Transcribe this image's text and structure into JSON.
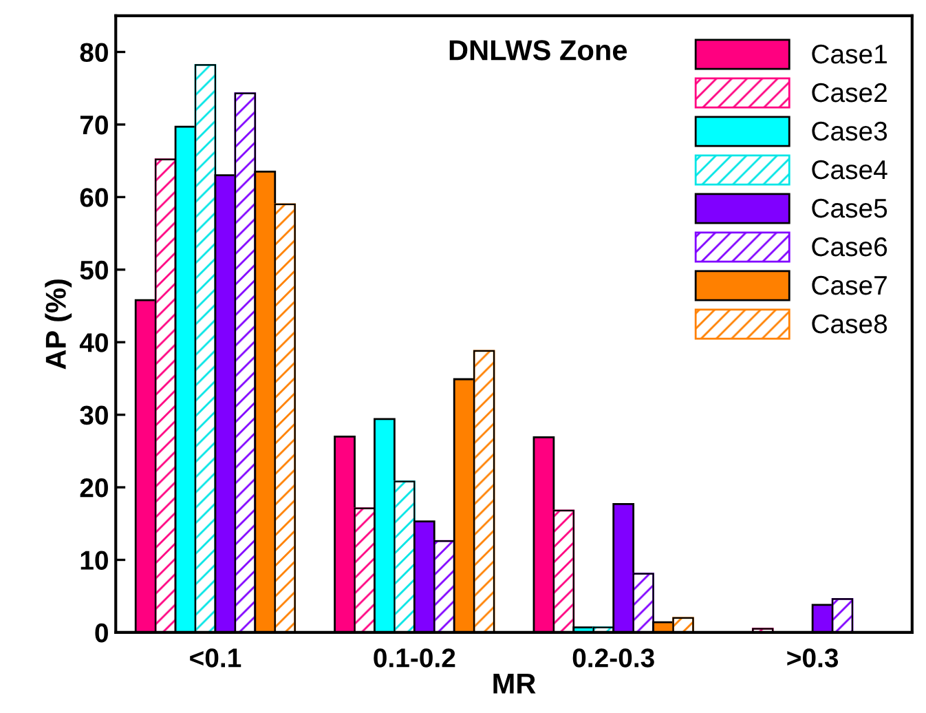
{
  "chart_data": {
    "type": "bar",
    "title": "DNLWS Zone",
    "xlabel": "MR",
    "ylabel": "AP (%)",
    "categories": [
      "<0.1",
      "0.1-0.2",
      "0.2-0.3",
      ">0.3"
    ],
    "ylim": [
      0,
      85
    ],
    "yticks": [
      0,
      10,
      20,
      30,
      40,
      50,
      60,
      70,
      80
    ],
    "grid": false,
    "legend": "top right",
    "series": [
      {
        "name": "Case1",
        "color": "#ff0080",
        "values": [
          45.8,
          27.0,
          26.9,
          null
        ]
      },
      {
        "name": "Case2",
        "color": "#ff0080",
        "values": [
          65.2,
          17.1,
          16.8,
          0.5
        ]
      },
      {
        "name": "Case3",
        "color": "#00ffff",
        "values": [
          69.7,
          29.4,
          0.7,
          null
        ]
      },
      {
        "name": "Case4",
        "color": "#00e5e5",
        "values": [
          78.2,
          20.8,
          0.7,
          null
        ]
      },
      {
        "name": "Case5",
        "color": "#8000ff",
        "values": [
          63.0,
          15.3,
          17.7,
          3.8
        ]
      },
      {
        "name": "Case6",
        "color": "#8000ff",
        "values": [
          74.3,
          12.6,
          8.1,
          4.6
        ]
      },
      {
        "name": "Case7",
        "color": "#ff8000",
        "values": [
          63.5,
          34.9,
          1.4,
          null
        ]
      },
      {
        "name": "Case8",
        "color": "#ff8000",
        "values": [
          59.0,
          38.8,
          2.0,
          null
        ]
      }
    ]
  }
}
